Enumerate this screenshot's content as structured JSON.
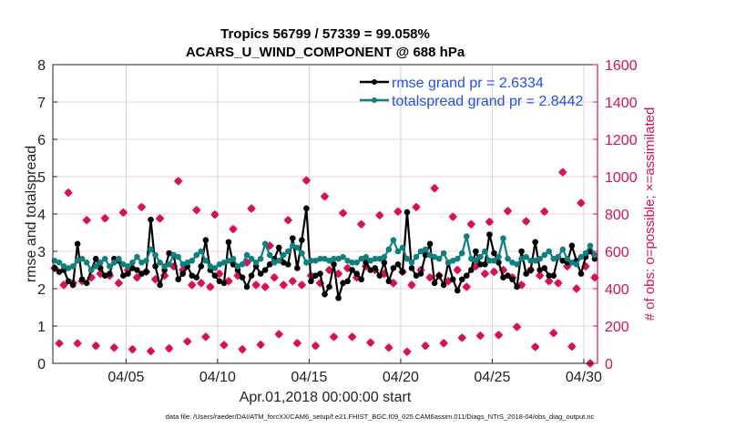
{
  "chart_data": {
    "type": "line",
    "title": [
      "Tropics 56799 / 57339 = 99.058%",
      "ACARS_U_WIND_COMPONENT @ 688 hPa"
    ],
    "xlabel": "Apr.01,2018 00:00:00 start",
    "ylabel": "rmse and totalspread",
    "ylabel_right": "# of obs: o=possible; ×=assimilated",
    "xlim": [
      0,
      29.75
    ],
    "ylim": [
      0,
      8
    ],
    "ylim_right": [
      0,
      1600
    ],
    "x_ticks": [
      {
        "value": 4,
        "label": "04/05"
      },
      {
        "value": 9,
        "label": "04/10"
      },
      {
        "value": 14,
        "label": "04/15"
      },
      {
        "value": 19,
        "label": "04/20"
      },
      {
        "value": 24,
        "label": "04/25"
      },
      {
        "value": 29,
        "label": "04/30"
      }
    ],
    "y_ticks": [
      0,
      1,
      2,
      3,
      4,
      5,
      6,
      7,
      8
    ],
    "y_ticks_right": [
      0,
      200,
      400,
      600,
      800,
      1000,
      1200,
      1400,
      1600
    ],
    "grid": true,
    "legend_position": "top-right",
    "x_step_days": 0.25,
    "series": [
      {
        "name": "rmse grand pr = 2.6334",
        "color": "#000000",
        "axis": "left",
        "values": [
          2.55,
          2.45,
          2.5,
          2.2,
          2.1,
          3.2,
          2.25,
          2.15,
          2.5,
          2.8,
          2.55,
          2.35,
          2.4,
          2.8,
          2.75,
          2.35,
          2.4,
          2.55,
          2.5,
          2.4,
          2.45,
          3.85,
          2.6,
          2.1,
          2.5,
          2.95,
          2.9,
          2.25,
          2.4,
          2.6,
          2.35,
          2.3,
          2.6,
          3.3,
          2.5,
          2.35,
          2.2,
          2.15,
          3.25,
          2.65,
          2.5,
          2.3,
          2.05,
          2.35,
          2.6,
          2.4,
          2.5,
          2.65,
          2.8,
          3.1,
          2.7,
          2.65,
          3.35,
          2.55,
          3.3,
          4.15,
          2.2,
          2.35,
          2.4,
          1.85,
          2.05,
          2.65,
          1.75,
          2.15,
          2.2,
          2.5,
          2.4,
          2.25,
          2.7,
          2.5,
          2.55,
          2.35,
          2.7,
          2.2,
          2.55,
          2.65,
          2.45,
          4.05,
          2.55,
          2.35,
          2.4,
          2.9,
          3.2,
          2.15,
          2.35,
          2.1,
          2.7,
          2.25,
          1.95,
          2.25,
          2.35,
          2.5,
          3.0,
          2.65,
          2.65,
          3.45,
          2.95,
          2.7,
          2.3,
          2.35,
          2.25,
          2.05,
          3.0,
          2.4,
          2.5,
          3.25,
          2.5,
          2.55,
          2.35,
          2.35,
          2.85,
          2.75,
          2.7,
          3.15,
          2.75,
          2.4,
          2.85,
          3.0,
          2.8,
          2.5
        ]
      },
      {
        "name": "totalspread grand pr = 2.8442",
        "color": "#0f8080",
        "axis": "left",
        "values": [
          2.75,
          2.7,
          2.6,
          2.55,
          2.6,
          2.75,
          2.8,
          2.7,
          2.5,
          2.6,
          2.7,
          2.8,
          2.6,
          2.7,
          2.8,
          2.65,
          2.6,
          2.7,
          2.85,
          2.7,
          2.75,
          3.05,
          2.9,
          2.7,
          2.6,
          2.65,
          2.9,
          2.85,
          2.65,
          2.7,
          2.75,
          2.9,
          3.0,
          2.75,
          2.6,
          2.55,
          2.65,
          2.7,
          2.75,
          2.8,
          2.6,
          2.65,
          2.9,
          2.8,
          2.7,
          2.8,
          3.2,
          2.9,
          2.7,
          2.75,
          2.9,
          3.0,
          3.15,
          3.1,
          2.95,
          2.7,
          2.75,
          2.75,
          2.8,
          2.8,
          2.75,
          2.8,
          2.8,
          2.85,
          2.75,
          2.7,
          2.7,
          2.8,
          2.85,
          2.75,
          2.8,
          2.8,
          2.85,
          3.05,
          3.3,
          3.0,
          3.1,
          2.8,
          2.7,
          2.85,
          3.0,
          3.05,
          2.9,
          2.85,
          2.8,
          2.95,
          2.7,
          2.75,
          2.8,
          2.95,
          3.4,
          2.8,
          2.75,
          2.85,
          3.0,
          2.75,
          2.75,
          2.85,
          3.35,
          2.8,
          2.7,
          2.65,
          2.8,
          2.85,
          2.75,
          2.75,
          2.8,
          2.9,
          3.0,
          2.8,
          2.85,
          3.05,
          2.8,
          2.7,
          2.65,
          2.85,
          2.95,
          3.15,
          2.9,
          2.7
        ]
      },
      {
        "name": "# of obs",
        "color": "#d81058",
        "axis": "right",
        "values": [
          510,
          107,
          420,
          914,
          430,
          107,
          440,
          767,
          460,
          94,
          480,
          777,
          470,
          84,
          430,
          808,
          500,
          75,
          460,
          837,
          490,
          65,
          450,
          776,
          470,
          80,
          520,
          976,
          500,
          117,
          420,
          821,
          430,
          142,
          410,
          797,
          480,
          98,
          440,
          719,
          470,
          75,
          540,
          829,
          420,
          100,
          410,
          630,
          460,
          156,
          420,
          767,
          440,
          108,
          420,
          980,
          470,
          94,
          430,
          894,
          500,
          142,
          480,
          805,
          510,
          142,
          460,
          745,
          520,
          111,
          500,
          793,
          480,
          84,
          430,
          813,
          490,
          62,
          420,
          837,
          500,
          94,
          460,
          938,
          470,
          108,
          440,
          785,
          500,
          137,
          410,
          745,
          520,
          148,
          480,
          758,
          490,
          152,
          500,
          816,
          460,
          195,
          420,
          761,
          500,
          88,
          470,
          813,
          440,
          162,
          430,
          1024,
          520,
          90,
          400,
          859,
          520,
          0,
          460,
          813
        ]
      }
    ]
  },
  "footer": {
    "data_file": "data file: /Users/raeder/DAI/ATM_forcXX/CAM6_setup/f.e21.FHIST_BGC.f09_025.CAM6assim.011/Diags_NTrS_2018-04/obs_diag_output.nc"
  }
}
